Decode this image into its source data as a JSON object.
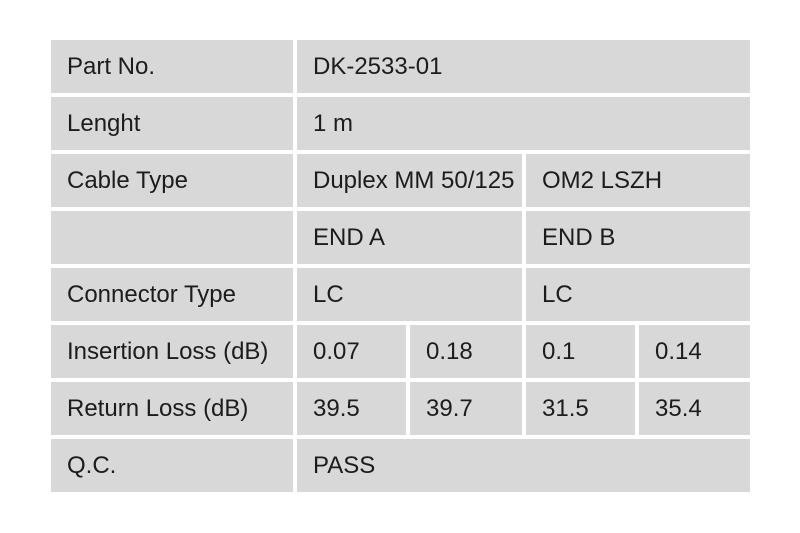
{
  "document": {
    "type": "cable-qc-spec-table",
    "colors": {
      "page_background": "#ffffff",
      "cell_background": "#d8d8d8",
      "text": "#1c1c1c",
      "grid_gap": "#ffffff"
    },
    "rows": {
      "part_no": {
        "label": "Part No.",
        "value": "DK-2533-01"
      },
      "length": {
        "label": "Lenght",
        "value": "1 m"
      },
      "cable_type": {
        "label": "Cable Type",
        "value_a": "Duplex MM 50/125",
        "value_b": "OM2 LSZH"
      },
      "ends_header": {
        "label": "",
        "end_a": "END A",
        "end_b": "END B"
      },
      "connector_type": {
        "label": "Connector Type",
        "end_a": "LC",
        "end_b": "LC"
      },
      "insertion_loss": {
        "label": "Insertion Loss (dB)",
        "a1": "0.07",
        "a2": "0.18",
        "b1": "0.1",
        "b2": "0.14"
      },
      "return_loss": {
        "label": "Return Loss (dB)",
        "a1": "39.5",
        "a2": "39.7",
        "b1": "31.5",
        "b2": "35.4"
      },
      "qc": {
        "label": "Q.C.",
        "value": "PASS"
      }
    }
  }
}
